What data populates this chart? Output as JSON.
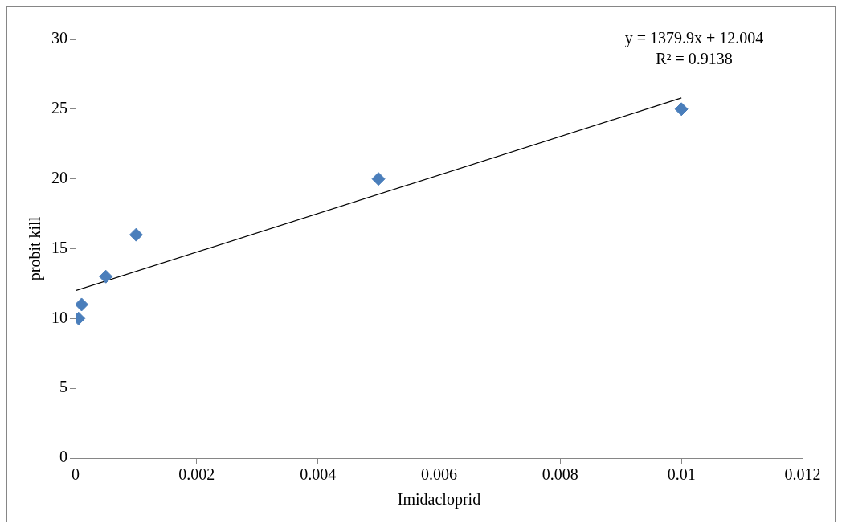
{
  "chart_data": {
    "type": "scatter",
    "xlabel": "Imidacloprid",
    "ylabel": "probit kill",
    "xlim": [
      0,
      0.012
    ],
    "xticks": [
      0,
      0.002,
      0.004,
      0.006,
      0.008,
      0.01,
      0.012
    ],
    "ylim": [
      0,
      30
    ],
    "yticks": [
      0,
      5,
      10,
      15,
      20,
      25,
      30
    ],
    "marker": "diamond",
    "series": [
      {
        "color": "#4a7ebb",
        "x": [
          5e-05,
          0.0001,
          0.0005,
          0.001,
          0.005,
          0.01
        ],
        "values": [
          10,
          11,
          13,
          16,
          20,
          25
        ]
      },
      {
        "type": "line",
        "color": "#000000",
        "marker": "none",
        "x": [
          0,
          0.01
        ],
        "values": [
          12,
          25.8
        ]
      }
    ],
    "annotations": [
      "y = 1379.9x + 12.004",
      "R² = 0.9138"
    ]
  }
}
